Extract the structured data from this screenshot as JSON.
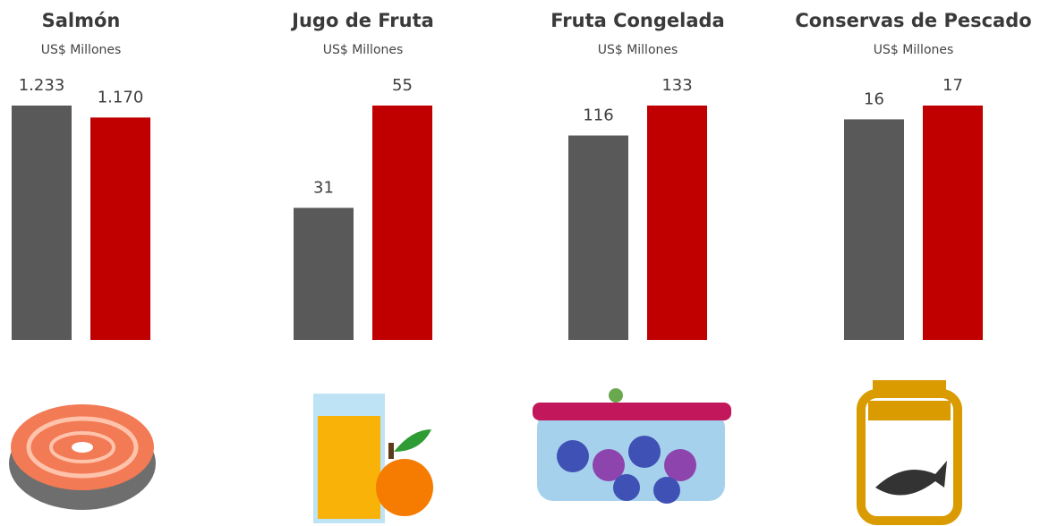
{
  "chart_data": [
    {
      "type": "bar",
      "title": "Salmón",
      "subtitle": "US$ Millones",
      "values": [
        1233,
        1170
      ],
      "value_labels": [
        "1.233",
        "1.170"
      ],
      "colors": [
        "#595959",
        "#c00000"
      ]
    },
    {
      "type": "bar",
      "title": "Jugo de Fruta",
      "subtitle": "US$ Millones",
      "values": [
        31,
        55
      ],
      "colors": [
        "#595959",
        "#c00000"
      ]
    },
    {
      "type": "bar",
      "title": "Fruta Congelada",
      "subtitle": "US$ Millones",
      "values": [
        116,
        133
      ],
      "colors": [
        "#595959",
        "#c00000"
      ]
    },
    {
      "type": "bar",
      "title": "Conservas de Pescado",
      "subtitle": "US$ Millones",
      "values": [
        16,
        17
      ],
      "colors": [
        "#595959",
        "#c00000"
      ]
    }
  ]
}
